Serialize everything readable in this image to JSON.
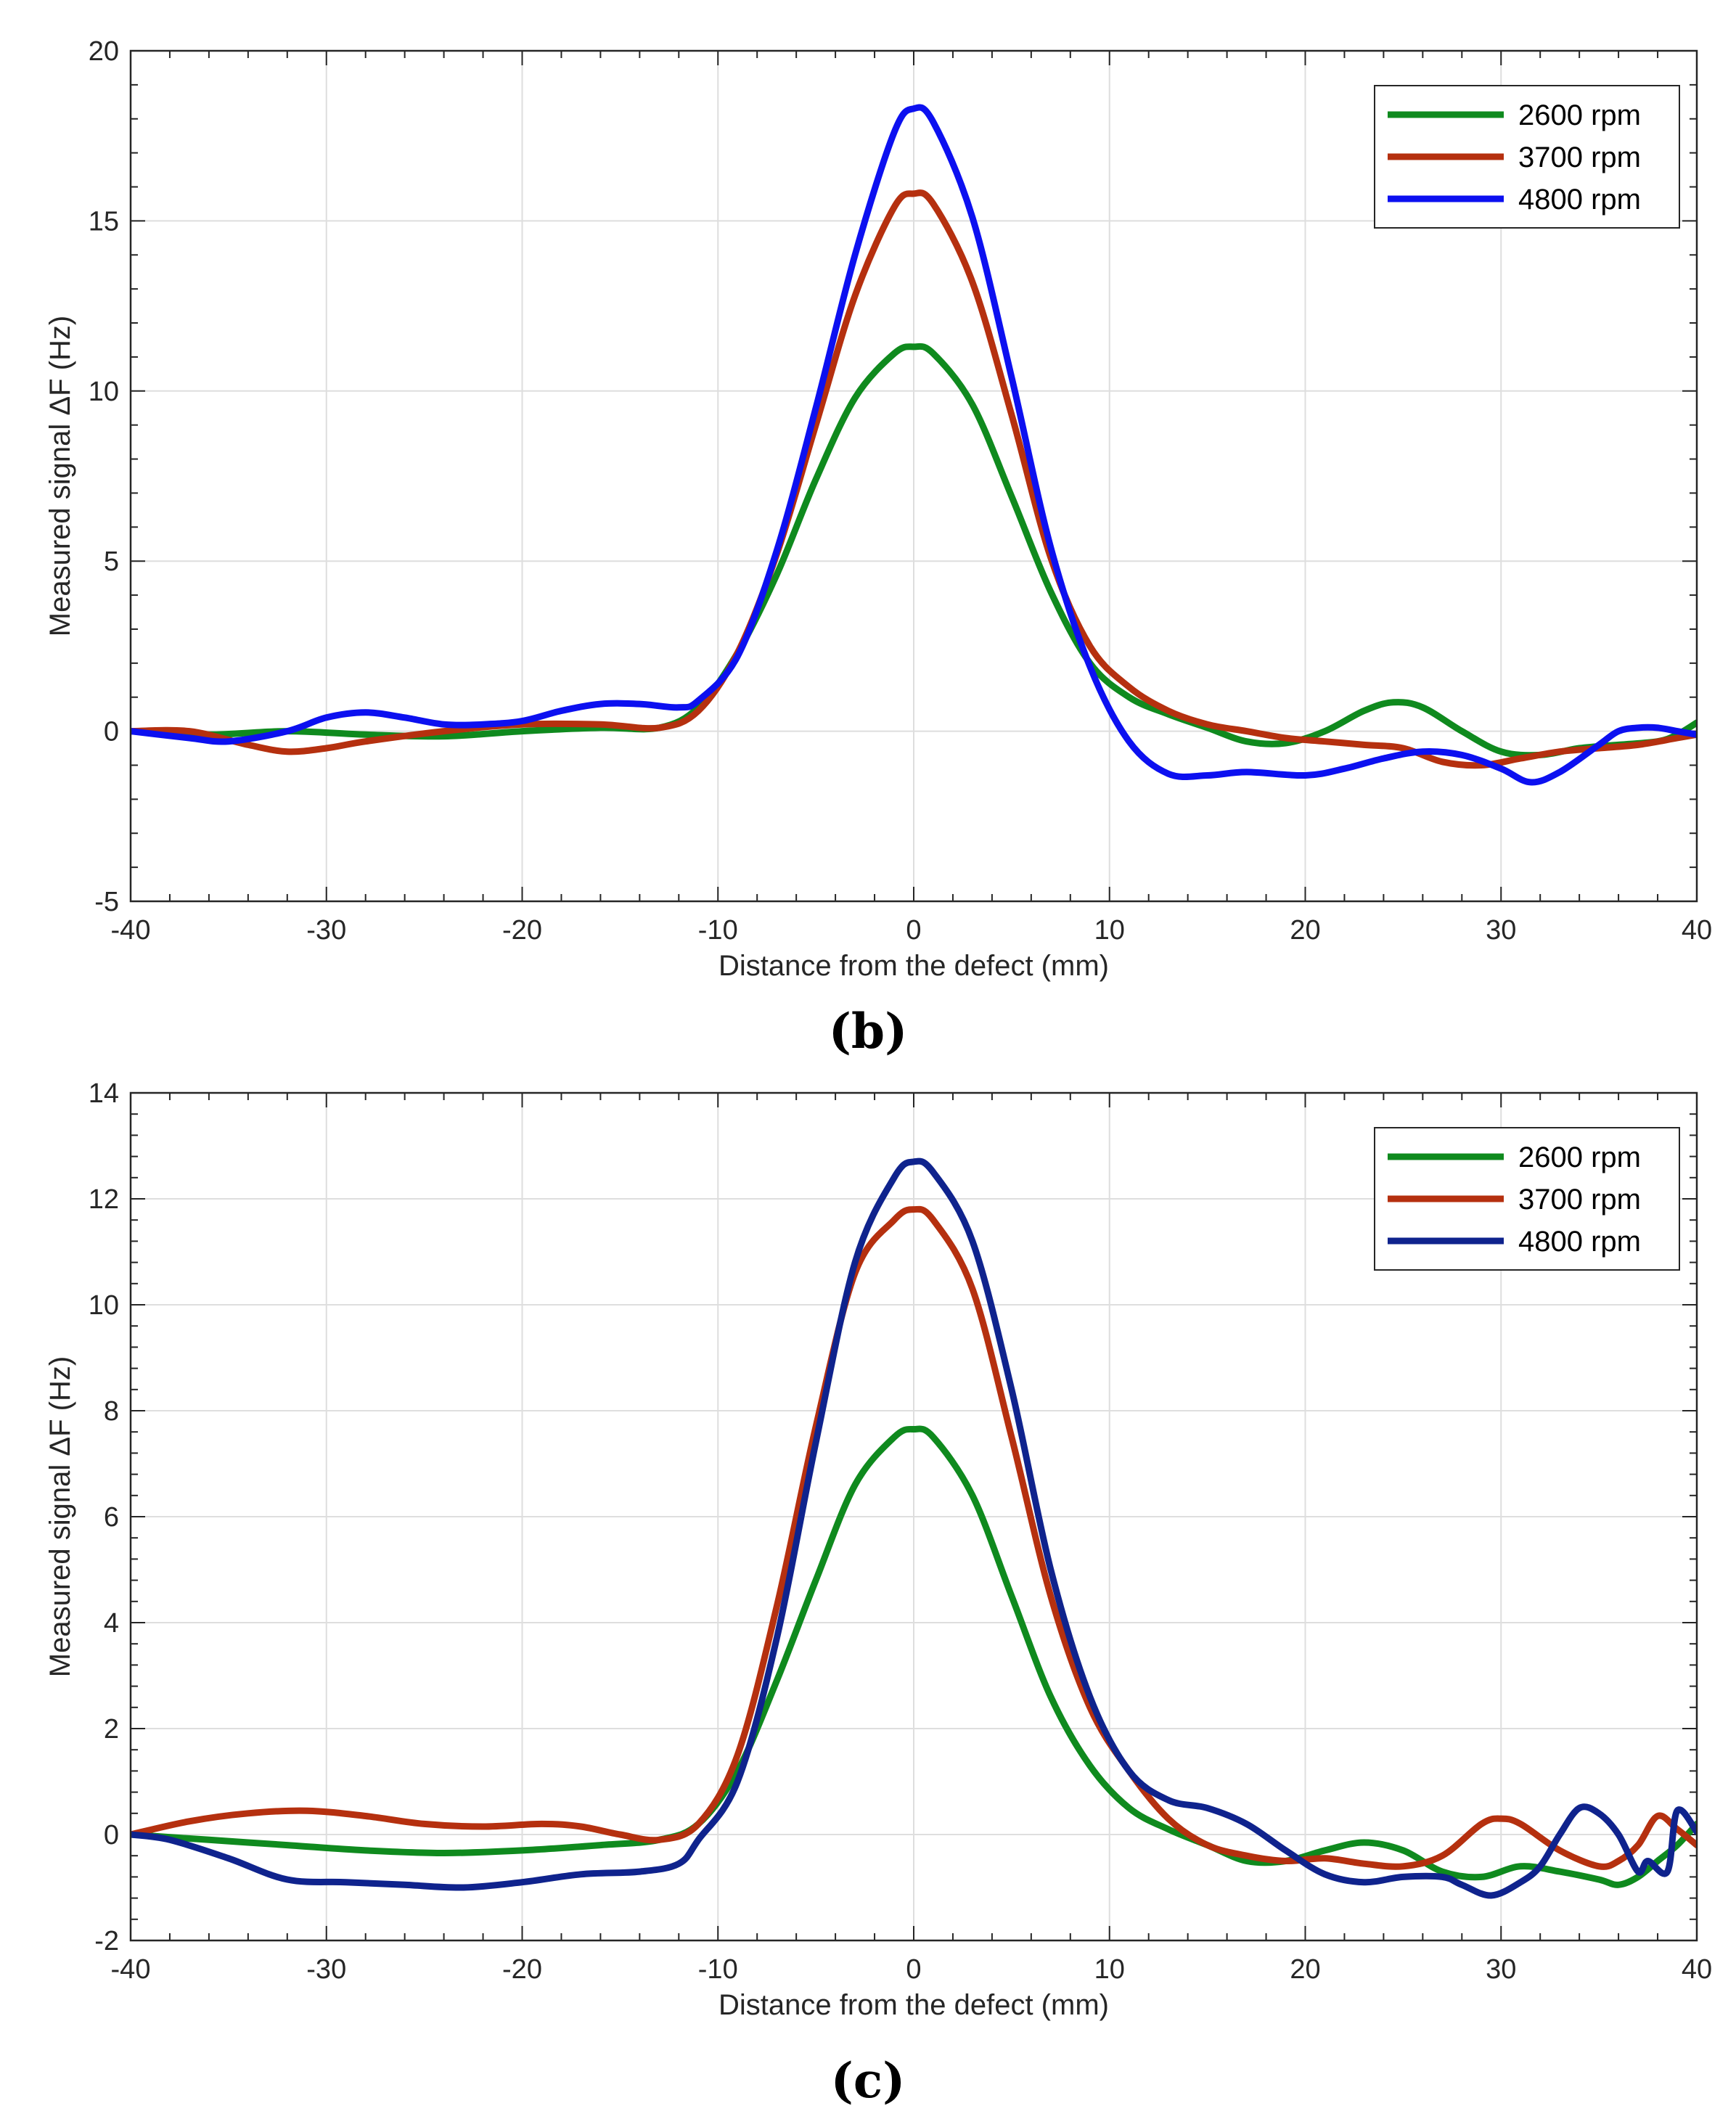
{
  "chart_data": [
    {
      "type": "line",
      "panel_label": "(b)",
      "title": "",
      "xlabel": "Distance from the defect (mm)",
      "ylabel": "Measured signal ΔF (Hz)",
      "xlim": [
        -40,
        40
      ],
      "ylim": [
        -5,
        20
      ],
      "xticks": [
        -40,
        -30,
        -20,
        -10,
        0,
        10,
        20,
        30,
        40
      ],
      "yticks": [
        -5,
        0,
        5,
        10,
        15,
        20
      ],
      "grid": true,
      "legend_position": "top-right",
      "series": [
        {
          "name": "2600 rpm",
          "color": "#0f8a1e",
          "x": [
            -40,
            -36,
            -32,
            -28,
            -24,
            -20,
            -16,
            -13,
            -11,
            -9,
            -7,
            -5,
            -3,
            -1,
            0,
            1,
            3,
            5,
            7,
            9,
            11,
            13,
            15,
            17,
            19,
            21,
            23,
            24.5,
            26,
            28,
            30,
            32,
            34,
            36,
            38,
            39,
            40
          ],
          "y": [
            0,
            -0.1,
            0,
            -0.1,
            -0.15,
            0,
            0.1,
            0.1,
            0.7,
            2.3,
            4.6,
            7.4,
            9.8,
            11.1,
            11.3,
            11.1,
            9.6,
            6.9,
            4.1,
            2.0,
            1.0,
            0.5,
            0.1,
            -0.3,
            -0.35,
            0,
            0.6,
            0.85,
            0.7,
            0,
            -0.6,
            -0.7,
            -0.5,
            -0.4,
            -0.3,
            -0.1,
            0.25
          ]
        },
        {
          "name": "3700 rpm",
          "color": "#b5300f",
          "x": [
            -40,
            -37,
            -34,
            -32,
            -30,
            -28,
            -24,
            -20,
            -16,
            -13,
            -11,
            -9,
            -7,
            -5,
            -3,
            -1,
            0,
            1,
            3,
            5,
            7,
            9,
            11,
            13,
            15,
            17,
            19,
            21,
            23,
            25,
            27,
            29,
            31,
            33,
            35,
            37,
            39,
            40
          ],
          "y": [
            0,
            0,
            -0.4,
            -0.6,
            -0.5,
            -0.3,
            0,
            0.2,
            0.2,
            0.1,
            0.6,
            2.3,
            5.2,
            9.0,
            12.8,
            15.4,
            15.8,
            15.5,
            13.2,
            9.3,
            5.1,
            2.5,
            1.3,
            0.6,
            0.2,
            0,
            -0.2,
            -0.3,
            -0.4,
            -0.5,
            -0.9,
            -1.0,
            -0.8,
            -0.6,
            -0.5,
            -0.4,
            -0.2,
            -0.1
          ]
        },
        {
          "name": "4800 rpm",
          "color": "#0c10f0",
          "x": [
            -40,
            -37,
            -35,
            -32,
            -30,
            -28,
            -26,
            -24,
            -22,
            -20,
            -18,
            -16,
            -14,
            -12,
            -11,
            -9,
            -7,
            -5,
            -3,
            -1,
            0,
            1,
            3,
            5,
            7,
            9,
            11,
            13,
            15,
            17,
            20,
            22,
            24,
            26,
            28,
            30,
            31.5,
            33,
            35,
            36,
            37,
            38,
            39,
            40
          ],
          "y": [
            0,
            -0.2,
            -0.3,
            0,
            0.4,
            0.55,
            0.4,
            0.2,
            0.2,
            0.3,
            0.6,
            0.8,
            0.8,
            0.7,
            0.9,
            2.2,
            5.3,
            9.5,
            14.0,
            17.6,
            18.3,
            17.9,
            15.1,
            10.4,
            5.4,
            1.9,
            -0.3,
            -1.25,
            -1.3,
            -1.2,
            -1.3,
            -1.1,
            -0.8,
            -0.6,
            -0.7,
            -1.1,
            -1.5,
            -1.2,
            -0.4,
            0,
            0.1,
            0.1,
            0,
            -0.1
          ]
        }
      ]
    },
    {
      "type": "line",
      "panel_label": "(c)",
      "title": "",
      "xlabel": "Distance from the defect (mm)",
      "ylabel": "Measured signal ΔF (Hz)",
      "xlim": [
        -40,
        40
      ],
      "ylim": [
        -2,
        14
      ],
      "xticks": [
        -40,
        -30,
        -20,
        -10,
        0,
        10,
        20,
        30,
        40
      ],
      "yticks": [
        -2,
        0,
        2,
        4,
        6,
        8,
        10,
        12,
        14
      ],
      "grid": true,
      "legend_position": "top-right",
      "series": [
        {
          "name": "2600 rpm",
          "color": "#0f8a1e",
          "x": [
            -40,
            -36,
            -32,
            -28,
            -24,
            -20,
            -16,
            -13,
            -11,
            -9,
            -7,
            -5,
            -3,
            -1,
            0,
            1,
            3,
            5,
            7,
            9,
            11,
            13,
            15,
            17,
            19,
            21,
            23,
            25,
            27,
            29,
            31,
            33,
            35,
            36,
            37,
            38,
            39,
            40
          ],
          "y": [
            0,
            -0.1,
            -0.2,
            -0.3,
            -0.35,
            -0.3,
            -0.2,
            -0.1,
            0.2,
            1.2,
            2.9,
            4.8,
            6.6,
            7.5,
            7.65,
            7.5,
            6.4,
            4.5,
            2.6,
            1.3,
            0.5,
            0.1,
            -0.2,
            -0.5,
            -0.5,
            -0.3,
            -0.15,
            -0.3,
            -0.7,
            -0.8,
            -0.6,
            -0.7,
            -0.85,
            -0.95,
            -0.8,
            -0.5,
            -0.2,
            0.2
          ]
        },
        {
          "name": "3700 rpm",
          "color": "#b5300f",
          "x": [
            -40,
            -37,
            -34,
            -31,
            -28,
            -25,
            -22,
            -19,
            -17,
            -15,
            -13,
            -11,
            -9,
            -7,
            -5,
            -3,
            -1,
            0,
            1,
            3,
            5,
            7,
            9,
            11,
            13,
            15,
            17,
            19,
            21,
            23,
            25,
            27,
            29,
            30,
            31,
            33,
            35,
            36,
            37,
            38,
            39,
            40
          ],
          "y": [
            0,
            0.25,
            0.4,
            0.45,
            0.35,
            0.2,
            0.15,
            0.2,
            0.15,
            0,
            -0.1,
            0.2,
            1.5,
            4.3,
            7.7,
            10.6,
            11.6,
            11.8,
            11.6,
            10.3,
            7.5,
            4.5,
            2.4,
            1.2,
            0.3,
            -0.2,
            -0.4,
            -0.5,
            -0.45,
            -0.55,
            -0.6,
            -0.4,
            0.2,
            0.3,
            0.2,
            -0.3,
            -0.6,
            -0.5,
            -0.2,
            0.35,
            0.1,
            -0.2
          ]
        },
        {
          "name": "4800 rpm",
          "color": "#0f238d",
          "x": [
            -40,
            -38,
            -35,
            -32,
            -29,
            -26,
            -23,
            -20,
            -17,
            -14,
            -12,
            -11,
            -9,
            -7,
            -5,
            -3,
            -1,
            0,
            1,
            3,
            5,
            7,
            9,
            11,
            13,
            15,
            17,
            19,
            21,
            23,
            25,
            27,
            28,
            29.5,
            31,
            32,
            33,
            34,
            35,
            36,
            37,
            37.5,
            38.5,
            39,
            40
          ],
          "y": [
            0,
            -0.1,
            -0.45,
            -0.85,
            -0.9,
            -0.95,
            -1.0,
            -0.9,
            -0.75,
            -0.7,
            -0.55,
            -0.1,
            1.0,
            3.7,
            7.4,
            10.8,
            12.4,
            12.7,
            12.5,
            11.2,
            8.4,
            5.0,
            2.6,
            1.2,
            0.65,
            0.5,
            0.2,
            -0.3,
            -0.75,
            -0.9,
            -0.8,
            -0.8,
            -0.95,
            -1.15,
            -0.9,
            -0.6,
            0,
            0.5,
            0.4,
            0,
            -0.7,
            -0.5,
            -0.7,
            0.45,
            0.05
          ]
        }
      ]
    }
  ]
}
